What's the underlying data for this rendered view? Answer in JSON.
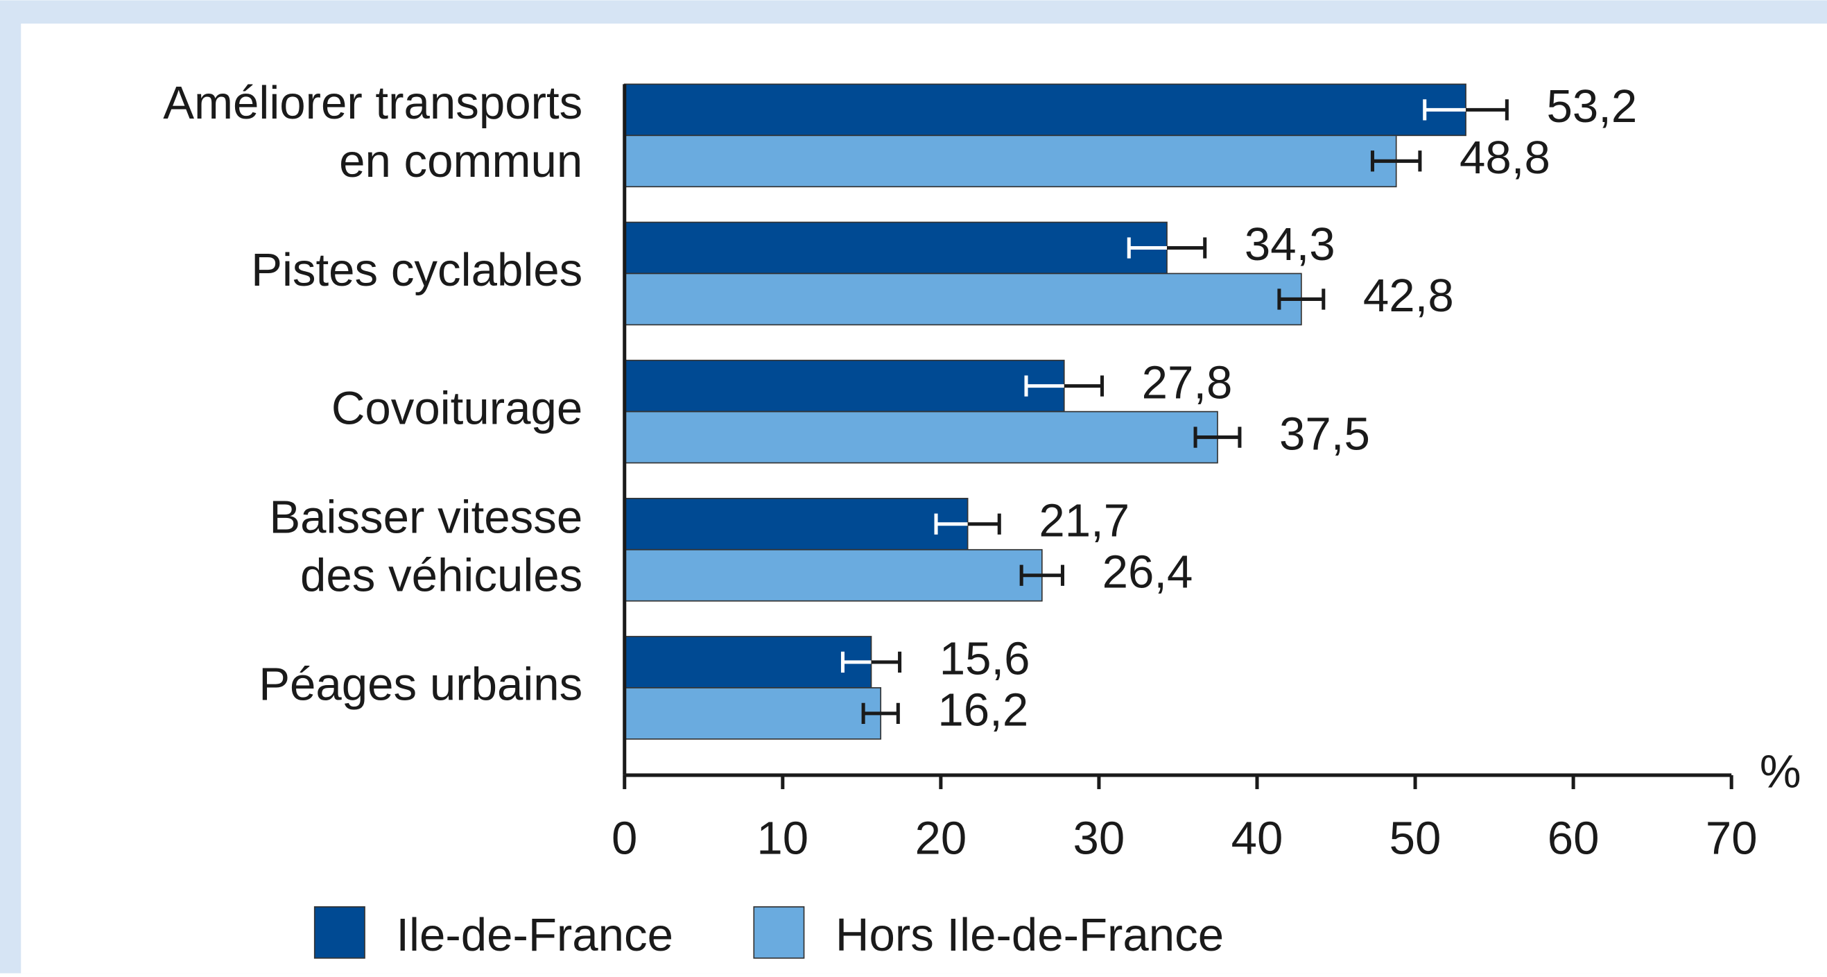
{
  "chart_data": {
    "type": "bar",
    "orientation": "horizontal",
    "categories": [
      [
        "Améliorer transports",
        "en commun"
      ],
      [
        "Pistes cyclables"
      ],
      [
        "Covoiturage"
      ],
      [
        "Baisser vitesse",
        "des véhicules"
      ],
      [
        "Péages urbains"
      ]
    ],
    "series": [
      {
        "name": "Ile-de-France",
        "color": "#004a93",
        "values": [
          53.2,
          34.3,
          27.8,
          21.7,
          15.6
        ],
        "errors": [
          2.6,
          2.4,
          2.4,
          2.0,
          1.8
        ],
        "value_labels": [
          "53,2",
          "34,3",
          "27,8",
          "21,7",
          "15,6"
        ]
      },
      {
        "name": "Hors Ile-de-France",
        "color": "#6aabdf",
        "values": [
          48.8,
          42.8,
          37.5,
          26.4,
          16.2
        ],
        "errors": [
          1.5,
          1.4,
          1.4,
          1.3,
          1.1
        ],
        "value_labels": [
          "48,8",
          "42,8",
          "37,5",
          "26,4",
          "16,2"
        ]
      }
    ],
    "xlim": [
      0,
      70
    ],
    "xticks": [
      0,
      10,
      20,
      30,
      40,
      50,
      60,
      70
    ],
    "unit_label": "%",
    "legend": "bottom"
  }
}
